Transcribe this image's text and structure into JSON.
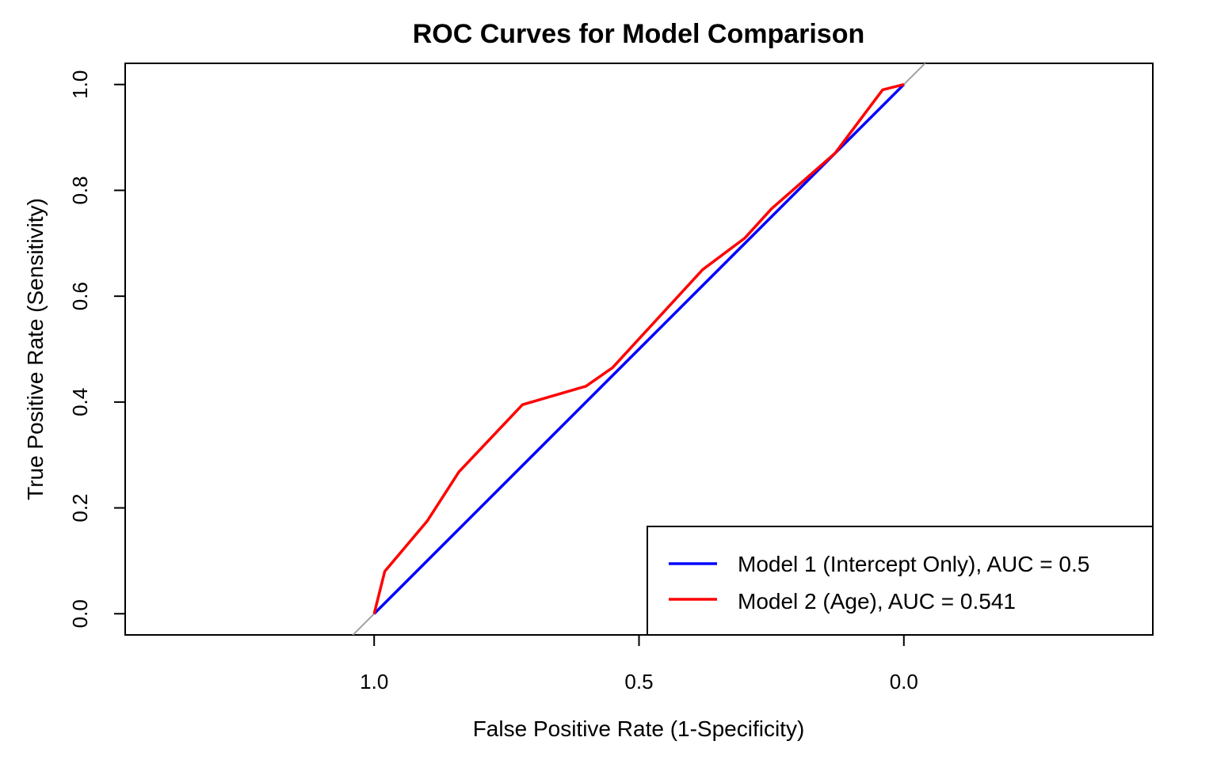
{
  "chart_data": {
    "type": "line",
    "title": "ROC Curves for Model Comparison",
    "xlabel": "False Positive Rate (1-Specificity)",
    "ylabel": "True Positive Rate (Sensitivity)",
    "x_axis_reversed": true,
    "xlim": [
      1.47,
      -0.47
    ],
    "ylim": [
      -0.04,
      1.04
    ],
    "x_ticks": [
      1.0,
      0.5,
      0.0
    ],
    "x_tick_labels": [
      "1.0",
      "0.5",
      "0.0"
    ],
    "y_ticks": [
      0.0,
      0.2,
      0.4,
      0.6,
      0.8,
      1.0
    ],
    "y_tick_labels": [
      "0.0",
      "0.2",
      "0.4",
      "0.6",
      "0.8",
      "1.0"
    ],
    "grid": false,
    "legend_position": "bottom-right",
    "reference_line": {
      "color": "#a0a0a0",
      "description": "diagonal y = 1 - x"
    },
    "series": [
      {
        "name": "Model 1 (Intercept Only), AUC = 0.5",
        "color": "#0000ff",
        "x": [
          1.0,
          0.0
        ],
        "y": [
          0.0,
          1.0
        ]
      },
      {
        "name": "Model 2 (Age), AUC = 0.541",
        "color": "#ff0000",
        "x": [
          1.0,
          0.98,
          0.9,
          0.84,
          0.72,
          0.6,
          0.55,
          0.38,
          0.3,
          0.25,
          0.13,
          0.04,
          0.0
        ],
        "y": [
          0.0,
          0.08,
          0.175,
          0.268,
          0.395,
          0.43,
          0.465,
          0.65,
          0.71,
          0.765,
          0.87,
          0.99,
          1.0
        ]
      }
    ]
  }
}
